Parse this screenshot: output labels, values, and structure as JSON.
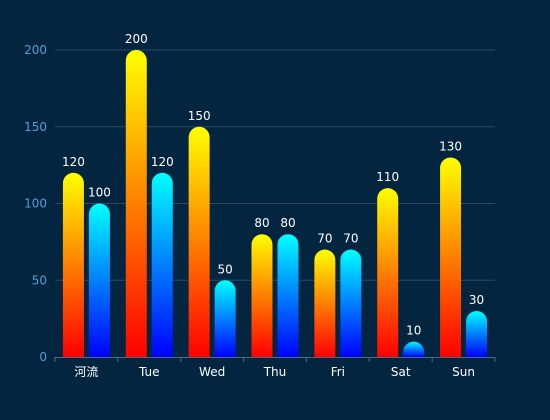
{
  "chart_data": {
    "type": "bar",
    "categories": [
      "河流",
      "Tue",
      "Wed",
      "Thu",
      "Fri",
      "Sat",
      "Sun"
    ],
    "series": [
      {
        "values": [
          120,
          200,
          150,
          80,
          70,
          110,
          130
        ]
      },
      {
        "values": [
          100,
          120,
          50,
          80,
          70,
          10,
          30
        ]
      }
    ],
    "title": "",
    "xlabel": "",
    "ylabel": "",
    "ylim": [
      0,
      200
    ],
    "yticks": [
      0,
      50,
      100,
      150,
      200
    ],
    "grid": true,
    "data_labels": true
  },
  "colors": {
    "background": "#032540",
    "grid": "#284a60",
    "axis": "#4b6b82",
    "y_tick_text": "#5b9bd5",
    "x_tick_text": "#ffffff",
    "label_text": "#ffffff",
    "series_0_top": "#ffff00",
    "series_0_bottom": "#ff0000",
    "series_1_top": "#00ffff",
    "series_1_bottom": "#0000ff"
  }
}
